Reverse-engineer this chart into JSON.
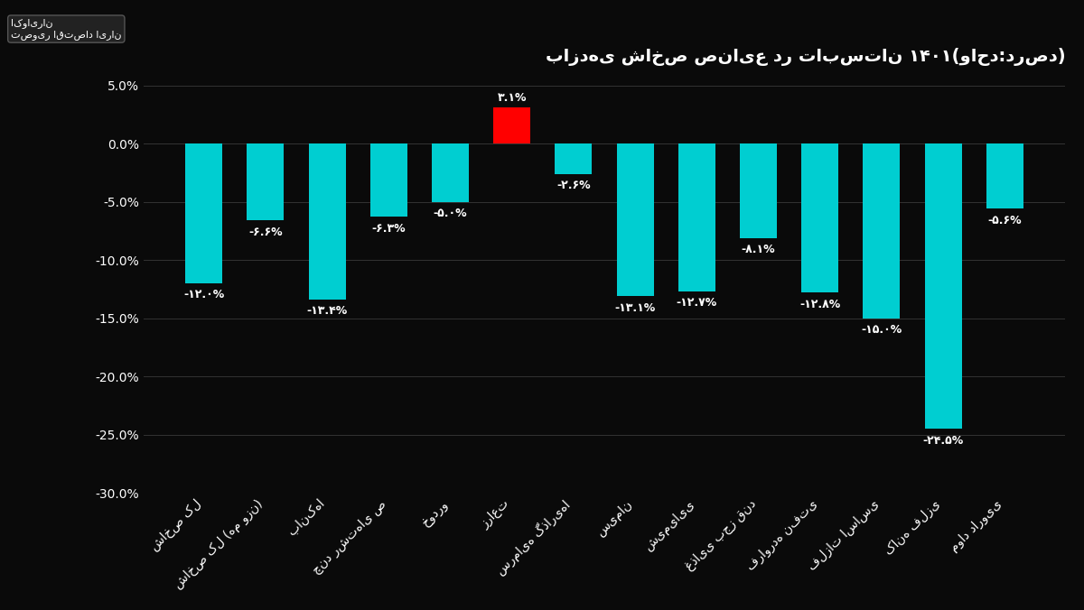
{
  "title": "بازدهی شاخص صنایع در تابستان ۱۴۰۱(واحد:درصد)",
  "categories": [
    "شاخص کل",
    "شاخص کل (هم وزن)",
    "بانک‌ها",
    "چند رشته‌ای ص",
    "خودرو",
    "زراعت",
    "سرمایه گذاری‌ها",
    "سیمان",
    "شیمیایی",
    "غذایی بجز قند",
    "فراورده نفتی",
    "فلزات اساسی",
    "کانه فلزی",
    "مواد دارویی"
  ],
  "values": [
    -12.0,
    -6.6,
    -13.4,
    -6.3,
    -5.0,
    3.1,
    -2.6,
    -13.1,
    -12.7,
    -8.1,
    -12.8,
    -15.0,
    -24.5,
    -5.6
  ],
  "bar_colors": [
    "#00CED1",
    "#00CED1",
    "#00CED1",
    "#00CED1",
    "#00CED1",
    "#FF0000",
    "#00CED1",
    "#00CED1",
    "#00CED1",
    "#00CED1",
    "#00CED1",
    "#00CED1",
    "#00CED1",
    "#00CED1"
  ],
  "background_color": "#0a0a0a",
  "text_color": "#ffffff",
  "grid_color": "#333333",
  "ylim": [
    -30,
    6
  ],
  "yticks": [
    5,
    0,
    -5,
    -10,
    -15,
    -20,
    -25,
    -30
  ],
  "value_labels": [
    "-۱۲.۰%",
    "-۶.۶%",
    "-۱۳.۴%",
    "-۶.۳%",
    "-۵.۰%",
    "۳.۱%",
    "-۲.۶%",
    "-۱۳.۱%",
    "-۱۲.۷%",
    "-۸.۱%",
    "-۱۲.۸%",
    "-۱۵.۰%",
    "-۲۴.۵%",
    "-۵.۶%"
  ]
}
